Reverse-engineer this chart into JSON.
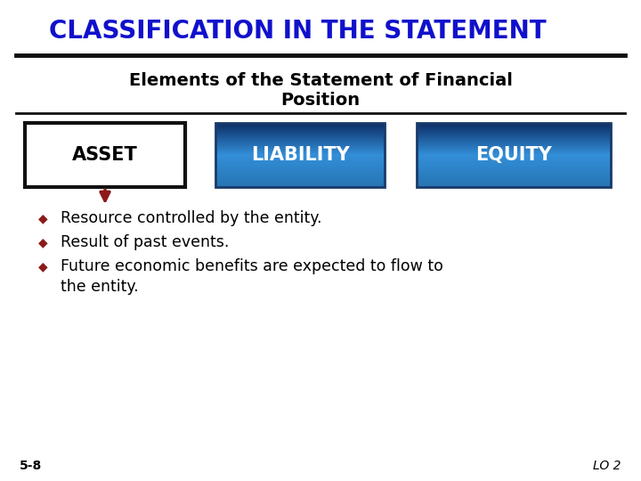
{
  "title": "CLASSIFICATION IN THE STATEMENT",
  "title_color": "#1010CC",
  "subtitle_line1": "Elements of the Statement of Financial",
  "subtitle_line2": "Position",
  "subtitle_color": "#000000",
  "box_labels": [
    "ASSET",
    "LIABILITY",
    "EQUITY"
  ],
  "box_text_colors": [
    "#000000",
    "#FFFFFF",
    "#FFFFFF"
  ],
  "bullet_color": "#8B1A1A",
  "bullet_points": [
    "Resource controlled by the entity.",
    "Result of past events.",
    "Future economic benefits are expected to flow to",
    "the entity."
  ],
  "footer_left": "5-8",
  "footer_right": "LO 2",
  "footer_color": "#000000",
  "arrow_color": "#8B1A1A",
  "background_color": "#FFFFFF",
  "line_color": "#111111",
  "asset_edge_color": "#111111",
  "blue_box_edge_color": "#1a3a6a",
  "blue_dark": "#1a3a6a",
  "blue_mid": "#2a7fd4",
  "blue_light": "#4499e0"
}
